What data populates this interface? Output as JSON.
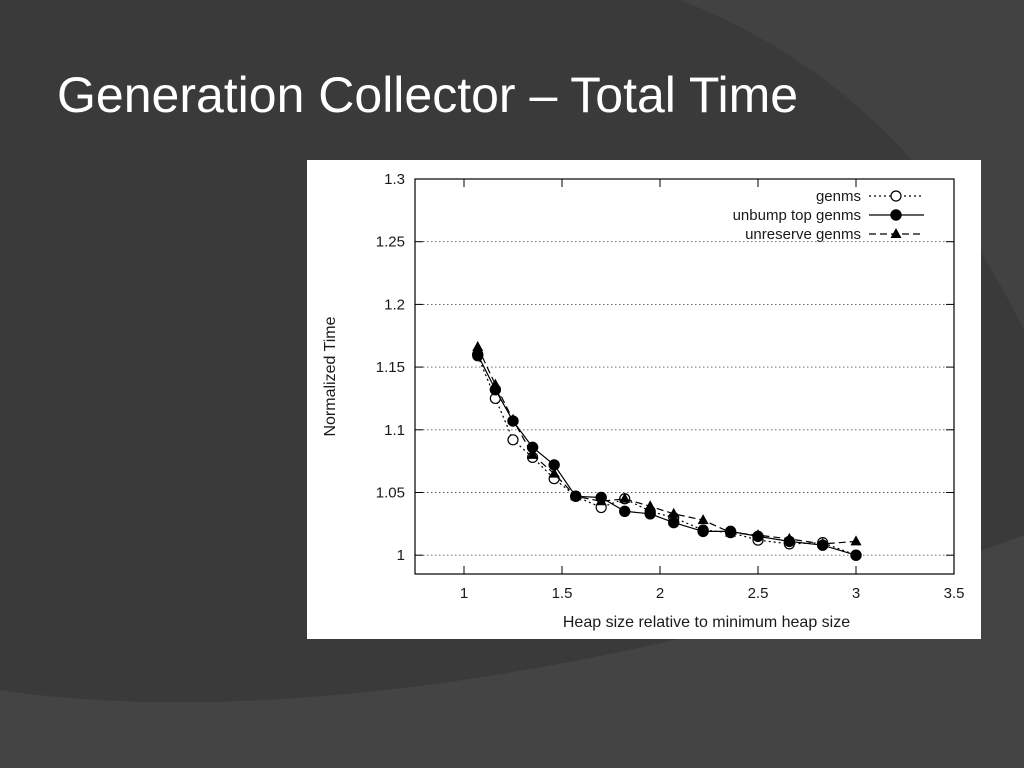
{
  "slide": {
    "title": "Generation Collector – Total Time",
    "background_color": "#3a3a3a"
  },
  "chart_data": {
    "type": "line",
    "xlabel": "Heap size relative to minimum heap size",
    "ylabel": "Normalized Time",
    "xlim": [
      0.75,
      3.5
    ],
    "ylim": [
      0.985,
      1.3
    ],
    "xticks": [
      1,
      1.5,
      2,
      2.5,
      3,
      3.5
    ],
    "xtick_labels": [
      "1",
      "1.5",
      "2",
      "2.5",
      "3",
      "3.5"
    ],
    "yticks": [
      1,
      1.05,
      1.1,
      1.15,
      1.2,
      1.25,
      1.3
    ],
    "ytick_labels": [
      "1",
      "1.05",
      "1.1",
      "1.15",
      "1.2",
      "1.25",
      "1.3"
    ],
    "grid": "horizontal dotted",
    "legend_position": "top-right",
    "series": [
      {
        "name": "genms",
        "marker": "open-circle",
        "line_style": "dotted",
        "x": [
          1.07,
          1.16,
          1.25,
          1.35,
          1.46,
          1.57,
          1.7,
          1.82,
          1.95,
          2.07,
          2.22,
          2.36,
          2.5,
          2.66,
          2.83,
          3.0
        ],
        "y": [
          1.159,
          1.125,
          1.092,
          1.078,
          1.061,
          1.047,
          1.038,
          1.045,
          1.035,
          1.03,
          1.02,
          1.018,
          1.012,
          1.009,
          1.01,
          1.0
        ]
      },
      {
        "name": "unbump top genms",
        "marker": "filled-circle",
        "line_style": "solid",
        "x": [
          1.07,
          1.16,
          1.25,
          1.35,
          1.46,
          1.57,
          1.7,
          1.82,
          1.95,
          2.07,
          2.22,
          2.36,
          2.5,
          2.66,
          2.83,
          3.0
        ],
        "y": [
          1.16,
          1.132,
          1.107,
          1.086,
          1.072,
          1.047,
          1.046,
          1.035,
          1.033,
          1.026,
          1.019,
          1.019,
          1.015,
          1.011,
          1.008,
          1.0
        ]
      },
      {
        "name": "unreserve genms",
        "marker": "filled-triangle",
        "line_style": "dashed",
        "x": [
          1.07,
          1.16,
          1.25,
          1.35,
          1.46,
          1.57,
          1.7,
          1.82,
          1.95,
          2.07,
          2.22,
          2.36,
          2.5,
          2.66,
          2.83,
          3.0
        ],
        "y": [
          1.166,
          1.136,
          1.108,
          1.08,
          1.065,
          1.047,
          1.043,
          1.045,
          1.039,
          1.033,
          1.028,
          1.018,
          1.016,
          1.013,
          1.009,
          1.011
        ]
      }
    ]
  }
}
